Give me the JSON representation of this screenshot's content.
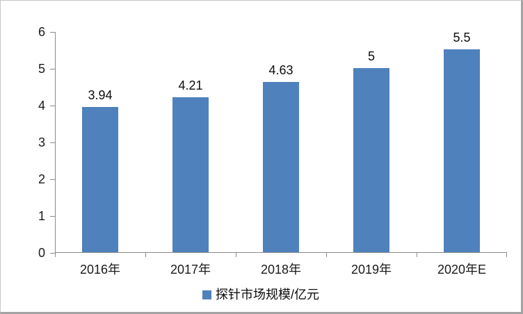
{
  "chart_data": {
    "type": "bar",
    "categories": [
      "2016年",
      "2017年",
      "2018年",
      "2019年",
      "2020年E"
    ],
    "series": [
      {
        "name": "探针市场规模/亿元",
        "values": [
          3.94,
          4.21,
          4.63,
          5,
          5.5
        ],
        "labels": [
          "3.94",
          "4.21",
          "4.63",
          "5",
          "5.5"
        ]
      }
    ],
    "title": "",
    "xlabel": "",
    "ylabel": "",
    "ylim": [
      0,
      6
    ],
    "y_ticks": [
      0,
      1,
      2,
      3,
      4,
      5,
      6
    ],
    "grid": false,
    "legend_position": "bottom",
    "bar_color": "#4F81BD",
    "axis_color": "#8a8a8a",
    "label_color": "#0d0d0d"
  },
  "legend": {
    "label": "探针市场规模/亿元",
    "marker_color": "#4F81BD"
  }
}
